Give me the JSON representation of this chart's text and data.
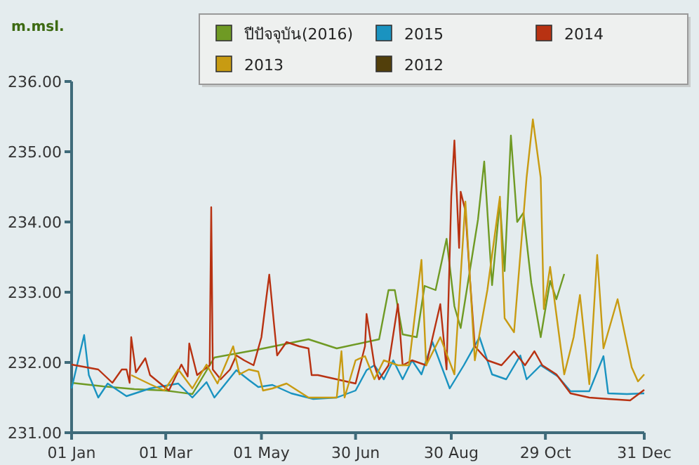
{
  "chart_data": {
    "type": "line",
    "ylabel": "m.msl.",
    "xlim": [
      "--01-01",
      "--12-31"
    ],
    "ylim": [
      231,
      236
    ],
    "xticks": [
      {
        "value": "--01-01",
        "label": "01 Jan"
      },
      {
        "value": "--03-01",
        "label": "01 Mar"
      },
      {
        "value": "--05-01",
        "label": "01 May"
      },
      {
        "value": "--06-30",
        "label": "30 Jun"
      },
      {
        "value": "--08-30",
        "label": "30 Aug"
      },
      {
        "value": "--10-29",
        "label": "29 Oct"
      },
      {
        "value": "--12-31",
        "label": "31 Dec"
      }
    ],
    "yticks": [
      {
        "value": 231,
        "label": "231.00"
      },
      {
        "value": 232,
        "label": "232.00"
      },
      {
        "value": 233,
        "label": "233.00"
      },
      {
        "value": 234,
        "label": "234.00"
      },
      {
        "value": 235,
        "label": "235.00"
      },
      {
        "value": 236,
        "label": "236.00"
      }
    ],
    "grid": false,
    "legend": "top",
    "marker": "none",
    "line_style": "solid",
    "series": [
      {
        "name": "ปีปัจจุบัน(2016)",
        "color": "#6f9a24",
        "x": [
          "--01-01",
          "--01-21",
          "--02-10",
          "--03-01",
          "--03-18",
          "--04-01",
          "--04-28",
          "--05-31",
          "--06-18",
          "--07-15",
          "--07-21",
          "--07-25",
          "--07-30",
          "--08-08",
          "--08-13",
          "--08-20",
          "--08-27",
          "--09-01",
          "--09-05",
          "--09-16",
          "--09-20",
          "--09-25",
          "--09-30",
          "--10-03",
          "--10-07",
          "--10-11",
          "--10-15",
          "--10-20",
          "--10-26",
          "--11-01",
          "--11-05",
          "--11-10"
        ],
        "values": [
          231.71,
          231.66,
          231.62,
          231.6,
          231.55,
          232.07,
          232.18,
          232.33,
          232.2,
          232.33,
          233.03,
          233.03,
          232.4,
          232.36,
          233.09,
          233.03,
          233.76,
          232.8,
          232.49,
          234.03,
          234.86,
          233.1,
          234.29,
          233.3,
          235.23,
          234.0,
          234.13,
          233.13,
          232.36,
          233.16,
          232.9,
          233.26
        ]
      },
      {
        "name": "2015",
        "color": "#1a93c0",
        "x": [
          "--01-01",
          "--01-09",
          "--01-12",
          "--01-18",
          "--01-24",
          "--02-05",
          "--02-20",
          "--03-09",
          "--03-18",
          "--03-27",
          "--04-01",
          "--04-15",
          "--04-23",
          "--04-29",
          "--05-08",
          "--05-20",
          "--06-03",
          "--06-18",
          "--06-30",
          "--07-07",
          "--07-12",
          "--07-18",
          "--07-24",
          "--07-30",
          "--08-05",
          "--08-11",
          "--08-18",
          "--08-29",
          "--09-07",
          "--09-17",
          "--09-25",
          "--10-04",
          "--10-13",
          "--10-17",
          "--10-26",
          "--11-06",
          "--11-14",
          "--11-26",
          "--12-05",
          "--12-08",
          "--12-20",
          "--12-31"
        ],
        "values": [
          231.63,
          232.39,
          231.82,
          231.5,
          231.7,
          231.52,
          231.63,
          231.7,
          231.5,
          231.72,
          231.5,
          231.89,
          231.75,
          231.65,
          231.68,
          231.56,
          231.48,
          231.5,
          231.6,
          231.89,
          231.96,
          231.76,
          232.03,
          231.76,
          232.03,
          231.83,
          232.29,
          231.63,
          231.96,
          232.36,
          231.83,
          231.76,
          232.1,
          231.76,
          231.96,
          231.8,
          231.59,
          231.59,
          232.09,
          231.56,
          231.55,
          231.56
        ]
      },
      {
        "name": "2014",
        "color": "#b83212",
        "x": [
          "--01-01",
          "--01-18",
          "--01-27",
          "--02-02",
          "--02-05",
          "--02-07",
          "--02-08",
          "--02-11",
          "--02-17",
          "--02-20",
          "--03-03",
          "--03-11",
          "--03-15",
          "--03-16",
          "--03-21",
          "--03-29",
          "--03-30",
          "--03-31",
          "--04-05",
          "--04-11",
          "--04-15",
          "--04-20",
          "--04-26",
          "--05-01",
          "--05-04",
          "--05-06",
          "--05-09",
          "--05-11",
          "--05-17",
          "--05-25",
          "--05-31",
          "--06-02",
          "--06-06",
          "--06-18",
          "--06-30",
          "--07-06",
          "--07-07",
          "--07-12",
          "--07-15",
          "--07-21",
          "--07-27",
          "--07-30",
          "--08-05",
          "--08-14",
          "--08-23",
          "--08-27",
          "--08-30",
          "--09-01",
          "--09-04",
          "--09-05",
          "--09-08",
          "--09-11",
          "--09-14",
          "--09-22",
          "--10-01",
          "--10-09",
          "--10-16",
          "--10-22",
          "--10-27",
          "--11-05",
          "--11-14",
          "--11-26",
          "--12-08",
          "--12-22",
          "--12-31"
        ],
        "values": [
          231.97,
          231.9,
          231.71,
          231.9,
          231.9,
          231.71,
          232.36,
          231.86,
          232.06,
          231.82,
          231.6,
          231.97,
          231.8,
          232.27,
          231.82,
          231.96,
          234.21,
          231.9,
          231.76,
          231.9,
          232.1,
          232.03,
          231.96,
          232.36,
          232.9,
          233.25,
          232.55,
          232.1,
          232.29,
          232.23,
          232.2,
          231.82,
          231.82,
          231.76,
          231.7,
          232.23,
          232.69,
          231.96,
          231.76,
          231.96,
          232.83,
          231.96,
          232.03,
          231.96,
          232.83,
          231.9,
          234.36,
          235.16,
          233.63,
          234.43,
          234.16,
          233.16,
          232.23,
          232.03,
          231.96,
          232.16,
          231.96,
          232.16,
          231.96,
          231.83,
          231.56,
          231.5,
          231.48,
          231.46,
          231.61
        ]
      },
      {
        "name": "2013",
        "color": "#c89b12",
        "x": [
          "--02-08",
          "--02-20",
          "--02-29",
          "--03-09",
          "--03-18",
          "--03-27",
          "--04-03",
          "--04-13",
          "--04-17",
          "--04-23",
          "--04-29",
          "--05-02",
          "--05-08",
          "--05-17",
          "--05-31",
          "--06-15",
          "--06-18",
          "--06-21",
          "--06-23",
          "--06-30",
          "--07-06",
          "--07-12",
          "--07-18",
          "--07-27",
          "--08-03",
          "--08-11",
          "--08-14",
          "--08-23",
          "--09-01",
          "--09-08",
          "--09-14",
          "--09-22",
          "--09-30",
          "--10-03",
          "--10-09",
          "--10-17",
          "--10-21",
          "--10-26",
          "--10-28",
          "--11-01",
          "--11-10",
          "--11-16",
          "--11-20",
          "--11-26",
          "--12-01",
          "--12-05",
          "--12-14",
          "--12-19",
          "--12-23",
          "--12-27",
          "--12-31"
        ],
        "values": [
          231.82,
          231.69,
          231.6,
          231.9,
          231.63,
          231.97,
          231.7,
          232.23,
          231.83,
          231.9,
          231.87,
          231.6,
          231.63,
          231.7,
          231.5,
          231.5,
          231.5,
          232.16,
          231.5,
          232.03,
          232.09,
          231.76,
          232.03,
          231.96,
          231.96,
          233.46,
          231.96,
          232.36,
          231.83,
          234.29,
          232.03,
          233.03,
          234.36,
          232.63,
          232.43,
          234.63,
          235.46,
          234.63,
          232.76,
          233.36,
          231.83,
          232.36,
          232.96,
          231.69,
          233.53,
          232.2,
          232.9,
          232.36,
          231.93,
          231.73,
          231.83
        ]
      },
      {
        "name": "2012",
        "color": "#523f0b"
      }
    ]
  }
}
